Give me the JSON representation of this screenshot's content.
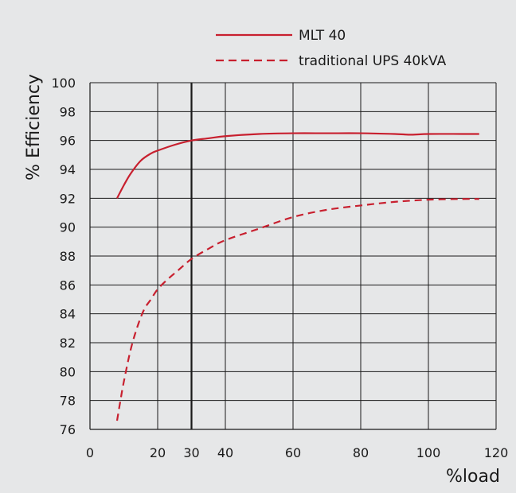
{
  "chart_data": {
    "type": "line",
    "title": "",
    "xlabel": "%load",
    "ylabel": "% Efficiency",
    "xlim": [
      0,
      120
    ],
    "ylim": [
      76,
      100
    ],
    "x_ticks": [
      0,
      20,
      30,
      40,
      60,
      80,
      100,
      120
    ],
    "y_ticks": [
      76,
      78,
      80,
      82,
      84,
      86,
      88,
      90,
      92,
      94,
      96,
      98,
      100
    ],
    "grid": true,
    "reference_line_x": 30,
    "legend": {
      "placement": "top"
    },
    "series": [
      {
        "name": "MLT 40",
        "style": "solid",
        "color": "#c8202f",
        "x": [
          8,
          10,
          12,
          15,
          18,
          20,
          25,
          30,
          35,
          40,
          50,
          60,
          70,
          80,
          90,
          95,
          100,
          110,
          115
        ],
        "y": [
          92.0,
          92.9,
          93.7,
          94.6,
          95.1,
          95.3,
          95.7,
          96.0,
          96.15,
          96.3,
          96.45,
          96.5,
          96.5,
          96.5,
          96.45,
          96.4,
          96.45,
          96.45,
          96.45
        ]
      },
      {
        "name": "traditional UPS 40kVA",
        "style": "dashed",
        "color": "#c8202f",
        "x": [
          8,
          9,
          10,
          12,
          14,
          16,
          18,
          20,
          23,
          26,
          30,
          35,
          40,
          50,
          60,
          70,
          80,
          90,
          100,
          110,
          115
        ],
        "y": [
          76.6,
          78.0,
          79.3,
          81.5,
          83.1,
          84.3,
          85.0,
          85.7,
          86.4,
          87.0,
          87.8,
          88.5,
          89.1,
          89.9,
          90.7,
          91.2,
          91.5,
          91.75,
          91.9,
          91.95,
          91.95
        ]
      }
    ]
  }
}
